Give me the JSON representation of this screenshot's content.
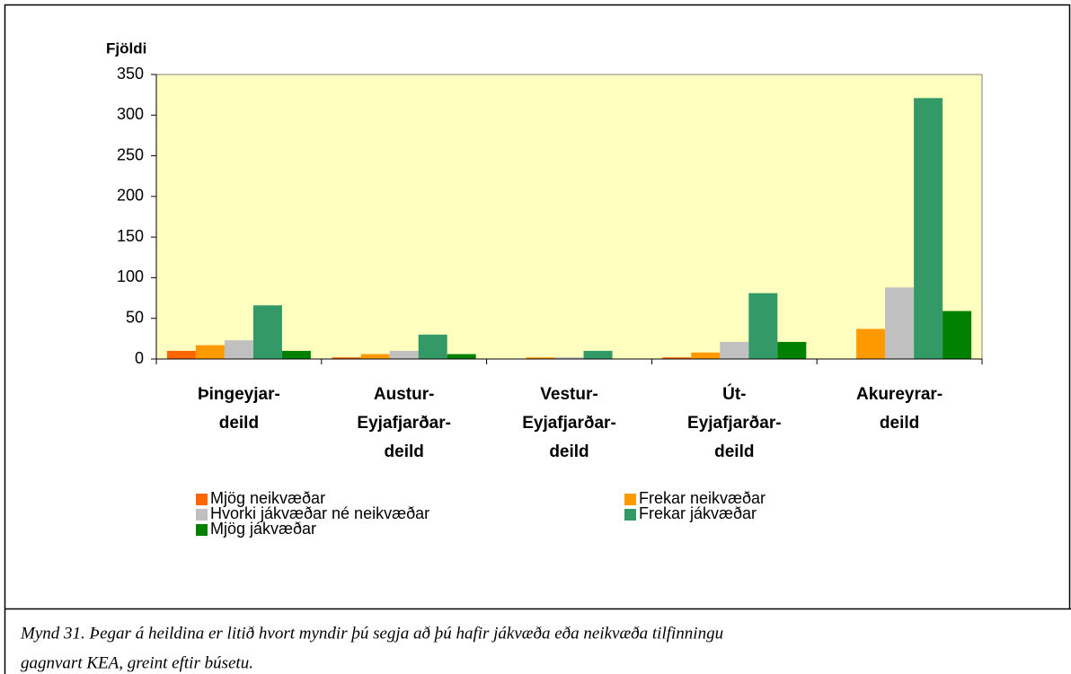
{
  "chart_data": {
    "type": "bar",
    "y_label": "Fjöldi",
    "categories": [
      [
        "Þingeyjar-",
        "deild"
      ],
      [
        "Austur-",
        "Eyjafjarðar-",
        "deild"
      ],
      [
        "Vestur-",
        "Eyjafjarðar-",
        "deild"
      ],
      [
        "Út-",
        "Eyjafjarðar-",
        "deild"
      ],
      [
        "Akureyrar-",
        "deild"
      ]
    ],
    "series": [
      {
        "name": "Mjög neikvæðar",
        "color": "#ff6600",
        "values": [
          10,
          2,
          0,
          2,
          0
        ]
      },
      {
        "name": "Frekar neikvæðar",
        "color": "#ff9900",
        "values": [
          17,
          6,
          2,
          8,
          37
        ]
      },
      {
        "name": "Hvorki jákvæðar né neikvæðar",
        "color": "#c0c0c0",
        "values": [
          23,
          10,
          2,
          21,
          88
        ]
      },
      {
        "name": "Frekar jákvæðar",
        "color": "#339966",
        "values": [
          66,
          30,
          10,
          81,
          321
        ]
      },
      {
        "name": "Mjög jákvæðar",
        "color": "#008000",
        "values": [
          10,
          6,
          0,
          21,
          59
        ]
      }
    ],
    "ylim": [
      0,
      350
    ],
    "yticks": [
      0,
      50,
      100,
      150,
      200,
      250,
      300,
      350
    ],
    "plot_background": "#ffffc0",
    "caption": [
      "Mynd 31.  Þegar á heildina er litið hvort myndir þú segja að þú hafir jákvæða eða neikvæða tilfinningu",
      "gagnvart KEA, greint eftir búsetu."
    ]
  }
}
